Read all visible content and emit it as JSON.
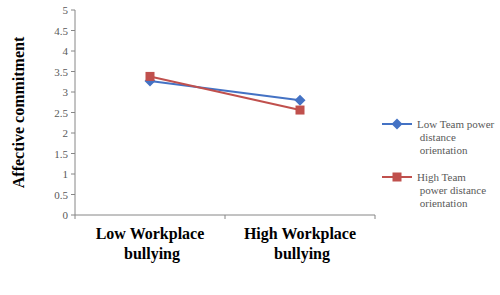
{
  "chart_data": {
    "type": "line",
    "y_label": "Affective commitment",
    "categories": [
      "Low Workplace bullying",
      "High Workplace bullying"
    ],
    "series": [
      {
        "name": "Low Team power distance orientation",
        "color": "#4472c4",
        "marker": "diamond",
        "values": [
          3.27,
          2.8
        ]
      },
      {
        "name": "High Team power distance orientation",
        "color": "#c0504d",
        "marker": "square",
        "values": [
          3.38,
          2.56
        ]
      }
    ],
    "ylim": [
      0,
      5
    ],
    "yticks": [
      0,
      0.5,
      1,
      1.5,
      2,
      2.5,
      3,
      3.5,
      4,
      4.5,
      5
    ],
    "grid": false,
    "legend": "right"
  }
}
